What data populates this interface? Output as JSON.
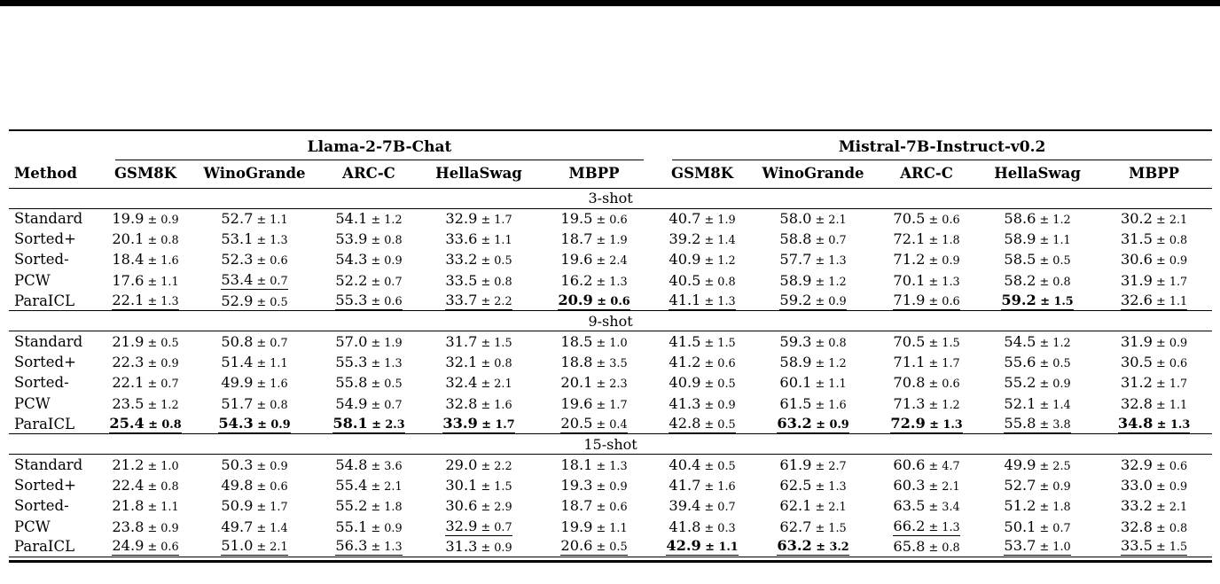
{
  "page": {
    "top_bar_color": "#000000",
    "rule_color": "#000000",
    "background": "#ffffff"
  },
  "table": {
    "method_header": "Method",
    "groups": [
      {
        "label": "Llama-2-7B-Chat",
        "columns": [
          "GSM8K",
          "WinoGrande",
          "ARC-C",
          "HellaSwag",
          "MBPP"
        ]
      },
      {
        "label": "Mistral-7B-Instruct-v0.2",
        "columns": [
          "GSM8K",
          "WinoGrande",
          "ARC-C",
          "HellaSwag",
          "MBPP"
        ]
      }
    ],
    "sections": [
      {
        "label": "3-shot",
        "rows": [
          {
            "method": "Standard",
            "cells": [
              {
                "value": "19.9",
                "err": "0.9"
              },
              {
                "value": "52.7",
                "err": "1.1"
              },
              {
                "value": "54.1",
                "err": "1.2"
              },
              {
                "value": "32.9",
                "err": "1.7"
              },
              {
                "value": "19.5",
                "err": "0.6"
              },
              {
                "value": "40.7",
                "err": "1.9"
              },
              {
                "value": "58.0",
                "err": "2.1"
              },
              {
                "value": "70.5",
                "err": "0.6"
              },
              {
                "value": "58.6",
                "err": "1.2"
              },
              {
                "value": "30.2",
                "err": "2.1"
              }
            ]
          },
          {
            "method": "Sorted+",
            "cells": [
              {
                "value": "20.1",
                "err": "0.8"
              },
              {
                "value": "53.1",
                "err": "1.3"
              },
              {
                "value": "53.9",
                "err": "0.8"
              },
              {
                "value": "33.6",
                "err": "1.1"
              },
              {
                "value": "18.7",
                "err": "1.9"
              },
              {
                "value": "39.2",
                "err": "1.4"
              },
              {
                "value": "58.8",
                "err": "0.7"
              },
              {
                "value": "72.1",
                "err": "1.8"
              },
              {
                "value": "58.9",
                "err": "1.1"
              },
              {
                "value": "31.5",
                "err": "0.8"
              }
            ]
          },
          {
            "method": "Sorted-",
            "cells": [
              {
                "value": "18.4",
                "err": "1.6"
              },
              {
                "value": "52.3",
                "err": "0.6"
              },
              {
                "value": "54.3",
                "err": "0.9"
              },
              {
                "value": "33.2",
                "err": "0.5"
              },
              {
                "value": "19.6",
                "err": "2.4"
              },
              {
                "value": "40.9",
                "err": "1.2"
              },
              {
                "value": "57.7",
                "err": "1.3"
              },
              {
                "value": "71.2",
                "err": "0.9"
              },
              {
                "value": "58.5",
                "err": "0.5"
              },
              {
                "value": "30.6",
                "err": "0.9"
              }
            ]
          },
          {
            "method": "PCW",
            "cells": [
              {
                "value": "17.6",
                "err": "1.1"
              },
              {
                "value": "53.4",
                "err": "0.7",
                "underline": true
              },
              {
                "value": "52.2",
                "err": "0.7"
              },
              {
                "value": "33.5",
                "err": "0.8"
              },
              {
                "value": "16.2",
                "err": "1.3"
              },
              {
                "value": "40.5",
                "err": "0.8"
              },
              {
                "value": "58.9",
                "err": "1.2"
              },
              {
                "value": "70.1",
                "err": "1.3"
              },
              {
                "value": "58.2",
                "err": "0.8"
              },
              {
                "value": "31.9",
                "err": "1.7"
              }
            ]
          },
          {
            "method": "ParaICL",
            "cells": [
              {
                "value": "22.1",
                "err": "1.3",
                "underline": true
              },
              {
                "value": "52.9",
                "err": "0.5"
              },
              {
                "value": "55.3",
                "err": "0.6",
                "underline": true
              },
              {
                "value": "33.7",
                "err": "2.2",
                "underline": true
              },
              {
                "value": "20.9",
                "err": "0.6",
                "bold": true,
                "underline": true
              },
              {
                "value": "41.1",
                "err": "1.3",
                "underline": true
              },
              {
                "value": "59.2",
                "err": "0.9",
                "underline": true
              },
              {
                "value": "71.9",
                "err": "0.6",
                "underline": true
              },
              {
                "value": "59.2",
                "err": "1.5",
                "bold": true,
                "underline": true
              },
              {
                "value": "32.6",
                "err": "1.1",
                "underline": true
              }
            ]
          }
        ]
      },
      {
        "label": "9-shot",
        "rows": [
          {
            "method": "Standard",
            "cells": [
              {
                "value": "21.9",
                "err": "0.5"
              },
              {
                "value": "50.8",
                "err": "0.7"
              },
              {
                "value": "57.0",
                "err": "1.9"
              },
              {
                "value": "31.7",
                "err": "1.5"
              },
              {
                "value": "18.5",
                "err": "1.0"
              },
              {
                "value": "41.5",
                "err": "1.5"
              },
              {
                "value": "59.3",
                "err": "0.8"
              },
              {
                "value": "70.5",
                "err": "1.5"
              },
              {
                "value": "54.5",
                "err": "1.2"
              },
              {
                "value": "31.9",
                "err": "0.9"
              }
            ]
          },
          {
            "method": "Sorted+",
            "cells": [
              {
                "value": "22.3",
                "err": "0.9"
              },
              {
                "value": "51.4",
                "err": "1.1"
              },
              {
                "value": "55.3",
                "err": "1.3"
              },
              {
                "value": "32.1",
                "err": "0.8"
              },
              {
                "value": "18.8",
                "err": "3.5"
              },
              {
                "value": "41.2",
                "err": "0.6"
              },
              {
                "value": "58.9",
                "err": "1.2"
              },
              {
                "value": "71.1",
                "err": "1.7"
              },
              {
                "value": "55.6",
                "err": "0.5"
              },
              {
                "value": "30.5",
                "err": "0.6"
              }
            ]
          },
          {
            "method": "Sorted-",
            "cells": [
              {
                "value": "22.1",
                "err": "0.7"
              },
              {
                "value": "49.9",
                "err": "1.6"
              },
              {
                "value": "55.8",
                "err": "0.5"
              },
              {
                "value": "32.4",
                "err": "2.1"
              },
              {
                "value": "20.1",
                "err": "2.3"
              },
              {
                "value": "40.9",
                "err": "0.5"
              },
              {
                "value": "60.1",
                "err": "1.1"
              },
              {
                "value": "70.8",
                "err": "0.6"
              },
              {
                "value": "55.2",
                "err": "0.9"
              },
              {
                "value": "31.2",
                "err": "1.7"
              }
            ]
          },
          {
            "method": "PCW",
            "cells": [
              {
                "value": "23.5",
                "err": "1.2"
              },
              {
                "value": "51.7",
                "err": "0.8"
              },
              {
                "value": "54.9",
                "err": "0.7"
              },
              {
                "value": "32.8",
                "err": "1.6"
              },
              {
                "value": "19.6",
                "err": "1.7"
              },
              {
                "value": "41.3",
                "err": "0.9"
              },
              {
                "value": "61.5",
                "err": "1.6"
              },
              {
                "value": "71.3",
                "err": "1.2"
              },
              {
                "value": "52.1",
                "err": "1.4"
              },
              {
                "value": "32.8",
                "err": "1.1"
              }
            ]
          },
          {
            "method": "ParaICL",
            "cells": [
              {
                "value": "25.4",
                "err": "0.8",
                "bold": true,
                "underline": true
              },
              {
                "value": "54.3",
                "err": "0.9",
                "bold": true,
                "underline": true
              },
              {
                "value": "58.1",
                "err": "2.3",
                "bold": true,
                "underline": true
              },
              {
                "value": "33.9",
                "err": "1.7",
                "bold": true,
                "underline": true
              },
              {
                "value": "20.5",
                "err": "0.4",
                "underline": true
              },
              {
                "value": "42.8",
                "err": "0.5",
                "underline": true
              },
              {
                "value": "63.2",
                "err": "0.9",
                "bold": true,
                "underline": true
              },
              {
                "value": "72.9",
                "err": "1.3",
                "bold": true,
                "underline": true
              },
              {
                "value": "55.8",
                "err": "3.8",
                "underline": true
              },
              {
                "value": "34.8",
                "err": "1.3",
                "bold": true,
                "underline": true
              }
            ]
          }
        ]
      },
      {
        "label": "15-shot",
        "rows": [
          {
            "method": "Standard",
            "cells": [
              {
                "value": "21.2",
                "err": "1.0"
              },
              {
                "value": "50.3",
                "err": "0.9"
              },
              {
                "value": "54.8",
                "err": "3.6"
              },
              {
                "value": "29.0",
                "err": "2.2"
              },
              {
                "value": "18.1",
                "err": "1.3"
              },
              {
                "value": "40.4",
                "err": "0.5"
              },
              {
                "value": "61.9",
                "err": "2.7"
              },
              {
                "value": "60.6",
                "err": "4.7"
              },
              {
                "value": "49.9",
                "err": "2.5"
              },
              {
                "value": "32.9",
                "err": "0.6"
              }
            ]
          },
          {
            "method": "Sorted+",
            "cells": [
              {
                "value": "22.4",
                "err": "0.8"
              },
              {
                "value": "49.8",
                "err": "0.6"
              },
              {
                "value": "55.4",
                "err": "2.1"
              },
              {
                "value": "30.1",
                "err": "1.5"
              },
              {
                "value": "19.3",
                "err": "0.9"
              },
              {
                "value": "41.7",
                "err": "1.6"
              },
              {
                "value": "62.5",
                "err": "1.3"
              },
              {
                "value": "60.3",
                "err": "2.1"
              },
              {
                "value": "52.7",
                "err": "0.9"
              },
              {
                "value": "33.0",
                "err": "0.9"
              }
            ]
          },
          {
            "method": "Sorted-",
            "cells": [
              {
                "value": "21.8",
                "err": "1.1"
              },
              {
                "value": "50.9",
                "err": "1.7"
              },
              {
                "value": "55.2",
                "err": "1.8"
              },
              {
                "value": "30.6",
                "err": "2.9"
              },
              {
                "value": "18.7",
                "err": "0.6"
              },
              {
                "value": "39.4",
                "err": "0.7"
              },
              {
                "value": "62.1",
                "err": "2.1"
              },
              {
                "value": "63.5",
                "err": "3.4"
              },
              {
                "value": "51.2",
                "err": "1.8"
              },
              {
                "value": "33.2",
                "err": "2.1"
              }
            ]
          },
          {
            "method": "PCW",
            "cells": [
              {
                "value": "23.8",
                "err": "0.9"
              },
              {
                "value": "49.7",
                "err": "1.4"
              },
              {
                "value": "55.1",
                "err": "0.9"
              },
              {
                "value": "32.9",
                "err": "0.7",
                "underline": true
              },
              {
                "value": "19.9",
                "err": "1.1"
              },
              {
                "value": "41.8",
                "err": "0.3"
              },
              {
                "value": "62.7",
                "err": "1.5"
              },
              {
                "value": "66.2",
                "err": "1.3",
                "underline": true
              },
              {
                "value": "50.1",
                "err": "0.7"
              },
              {
                "value": "32.8",
                "err": "0.8"
              }
            ]
          },
          {
            "method": "ParaICL",
            "cells": [
              {
                "value": "24.9",
                "err": "0.6",
                "underline": true
              },
              {
                "value": "51.0",
                "err": "2.1",
                "underline": true
              },
              {
                "value": "56.3",
                "err": "1.3",
                "underline": true
              },
              {
                "value": "31.3",
                "err": "0.9"
              },
              {
                "value": "20.6",
                "err": "0.5",
                "underline": true
              },
              {
                "value": "42.9",
                "err": "1.1",
                "bold": true,
                "underline": true
              },
              {
                "value": "63.2",
                "err": "3.2",
                "bold": true,
                "underline": true
              },
              {
                "value": "65.8",
                "err": "0.8"
              },
              {
                "value": "53.7",
                "err": "1.0",
                "underline": true
              },
              {
                "value": "33.5",
                "err": "1.5",
                "underline": true
              }
            ]
          }
        ]
      }
    ]
  }
}
